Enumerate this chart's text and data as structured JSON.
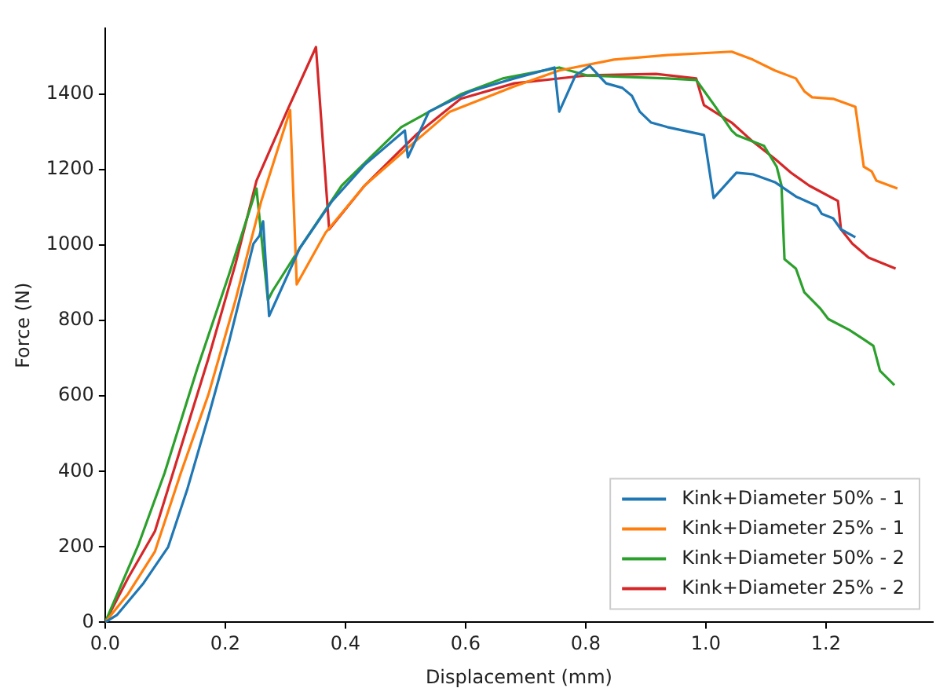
{
  "chart_data": {
    "type": "line",
    "xlabel": "Displacement (mm)",
    "ylabel": "Force (N)",
    "xlim": [
      0,
      1.378
    ],
    "ylim": [
      0,
      1575
    ],
    "xticks": [
      {
        "value": 0,
        "label": "0.0"
      },
      {
        "value": 0.2,
        "label": "0.2"
      },
      {
        "value": 0.4,
        "label": "0.4"
      },
      {
        "value": 0.6,
        "label": "0.6"
      },
      {
        "value": 0.8,
        "label": "0.8"
      },
      {
        "value": 1,
        "label": "1.0"
      },
      {
        "value": 1.2,
        "label": "1.2"
      }
    ],
    "yticks": [
      0,
      200,
      400,
      600,
      800,
      1000,
      1200,
      1400
    ],
    "grid": false,
    "legend": "bottom right",
    "marker": "none",
    "line_style": "solid",
    "series": [
      {
        "name": "Kink+Diameter 50% - 1",
        "color": "#1f77b4",
        "x": [
          0,
          0.02,
          0.064,
          0.105,
          0.137,
          0.172,
          0.206,
          0.247,
          0.257,
          0.263,
          0.273,
          0.324,
          0.378,
          0.432,
          0.499,
          0.504,
          0.539,
          0.608,
          0.681,
          0.748,
          0.756,
          0.783,
          0.807,
          0.834,
          0.861,
          0.877,
          0.89,
          0.909,
          0.936,
          0.997,
          1.013,
          1.051,
          1.078,
          1.115,
          1.15,
          1.185,
          1.193,
          1.212,
          1.225,
          1.249
        ],
        "values": [
          0,
          20,
          104,
          200,
          354,
          546,
          742,
          1004,
          1025,
          1063,
          812,
          992,
          1117,
          1213,
          1304,
          1233,
          1354,
          1408,
          1442,
          1471,
          1354,
          1450,
          1475,
          1429,
          1417,
          1396,
          1354,
          1325,
          1313,
          1292,
          1125,
          1192,
          1188,
          1167,
          1129,
          1104,
          1083,
          1071,
          1042,
          1021
        ]
      },
      {
        "name": "Kink+Diameter 25% - 1",
        "color": "#ff7f0e",
        "x": [
          0,
          0.038,
          0.083,
          0.126,
          0.172,
          0.217,
          0.26,
          0.308,
          0.319,
          0.367,
          0.432,
          0.501,
          0.574,
          0.681,
          0.756,
          0.847,
          0.936,
          1.043,
          1.078,
          1.115,
          1.15,
          1.164,
          1.177,
          1.212,
          1.249,
          1.263,
          1.276,
          1.284,
          1.319
        ],
        "values": [
          0,
          75,
          188,
          396,
          604,
          854,
          1117,
          1358,
          896,
          1033,
          1158,
          1254,
          1354,
          1421,
          1463,
          1492,
          1504,
          1513,
          1492,
          1463,
          1442,
          1408,
          1392,
          1388,
          1367,
          1208,
          1196,
          1171,
          1150
        ]
      },
      {
        "name": "Kink+Diameter 50% - 2",
        "color": "#2ca02c",
        "x": [
          0,
          0.056,
          0.099,
          0.153,
          0.206,
          0.252,
          0.271,
          0.279,
          0.324,
          0.394,
          0.493,
          0.592,
          0.662,
          0.756,
          0.802,
          0.936,
          0.984,
          1.016,
          1.043,
          1.051,
          1.097,
          1.118,
          1.126,
          1.131,
          1.15,
          1.164,
          1.19,
          1.204,
          1.239,
          1.263,
          1.279,
          1.29,
          1.314
        ],
        "values": [
          0,
          208,
          396,
          671,
          921,
          1150,
          854,
          879,
          992,
          1158,
          1313,
          1400,
          1442,
          1471,
          1450,
          1442,
          1438,
          1367,
          1304,
          1292,
          1263,
          1208,
          1158,
          963,
          938,
          875,
          833,
          804,
          775,
          750,
          733,
          667,
          629
        ]
      },
      {
        "name": "Kink+Diameter 25% - 2",
        "color": "#d62728",
        "x": [
          0,
          0.038,
          0.083,
          0.126,
          0.172,
          0.217,
          0.252,
          0.306,
          0.351,
          0.373,
          0.432,
          0.52,
          0.592,
          0.681,
          0.802,
          0.917,
          0.984,
          0.997,
          1.043,
          1.078,
          1.115,
          1.142,
          1.172,
          1.22,
          1.225,
          1.244,
          1.271,
          1.316
        ],
        "values": [
          0,
          117,
          242,
          463,
          700,
          950,
          1171,
          1367,
          1525,
          1042,
          1158,
          1296,
          1388,
          1429,
          1450,
          1454,
          1442,
          1371,
          1325,
          1275,
          1229,
          1192,
          1158,
          1117,
          1042,
          1004,
          967,
          938
        ]
      }
    ]
  }
}
